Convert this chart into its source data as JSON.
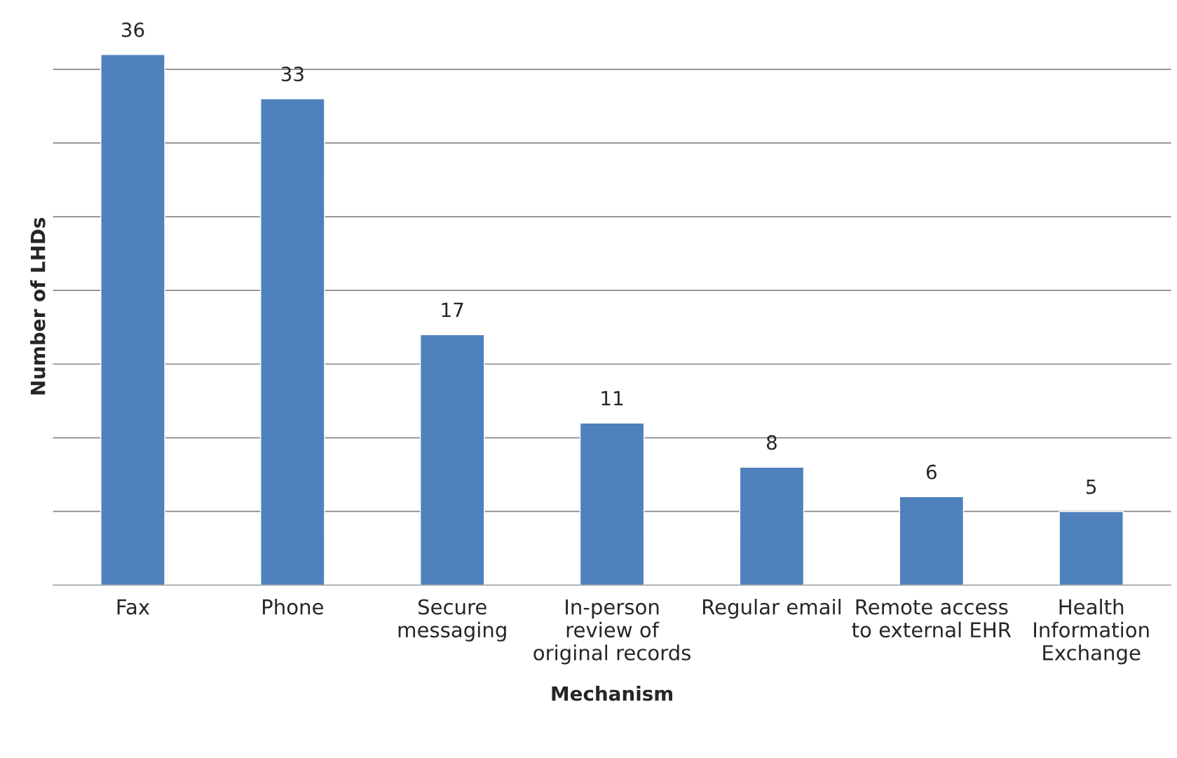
{
  "chart_data": {
    "type": "bar",
    "xlabel": "Mechanism",
    "ylabel": "Number of LHDs",
    "categories": [
      "Fax",
      "Phone",
      "Secure\nmessaging",
      "In-person\nreview of\noriginal records",
      "Regular email",
      "Remote access\nto external EHR",
      "Health\nInformation\nExchange"
    ],
    "values": [
      36,
      33,
      17,
      11,
      8,
      6,
      5
    ],
    "color": "#4f81bd",
    "data_labels": true,
    "yticks": [
      {
        "value": 0,
        "label": null
      },
      {
        "value": 5,
        "label": null
      },
      {
        "value": 10,
        "label": null
      },
      {
        "value": 15,
        "label": null
      },
      {
        "value": 20,
        "label": null
      },
      {
        "value": 25,
        "label": null
      },
      {
        "value": 30,
        "label": null
      },
      {
        "value": 35,
        "label": null
      }
    ],
    "grid": "y",
    "tick_labels": "x"
  }
}
